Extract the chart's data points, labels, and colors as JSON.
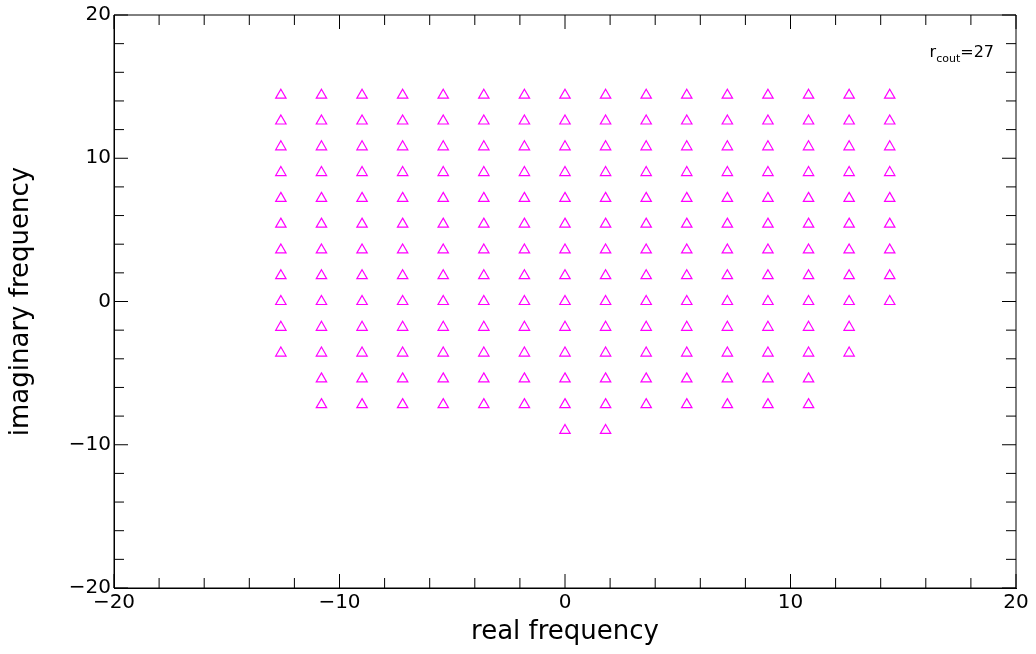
{
  "chart_data": {
    "type": "scatter",
    "xlabel": "real frequency",
    "ylabel": "imaginary frequency",
    "marker": "triangle",
    "grid": false,
    "legend": false,
    "xlim": [
      -20,
      20
    ],
    "ylim": [
      -20,
      20
    ],
    "xticks": [
      -20,
      {
        "value": -18,
        "label": null
      },
      {
        "value": -16,
        "label": null
      },
      {
        "value": -14,
        "label": null
      },
      {
        "value": -12,
        "label": null
      },
      -10,
      {
        "value": -8,
        "label": null
      },
      {
        "value": -6,
        "label": null
      },
      {
        "value": -4,
        "label": null
      },
      {
        "value": -2,
        "label": null
      },
      0,
      {
        "value": 2,
        "label": null
      },
      {
        "value": 4,
        "label": null
      },
      {
        "value": 6,
        "label": null
      },
      {
        "value": 8,
        "label": null
      },
      10,
      {
        "value": 12,
        "label": null
      },
      {
        "value": 14,
        "label": null
      },
      {
        "value": 16,
        "label": null
      },
      {
        "value": 18,
        "label": null
      },
      20
    ],
    "yticks": [
      -20,
      {
        "value": -18,
        "label": null
      },
      {
        "value": -16,
        "label": null
      },
      {
        "value": -14,
        "label": null
      },
      {
        "value": -12,
        "label": null
      },
      -10,
      {
        "value": -8,
        "label": null
      },
      {
        "value": -6,
        "label": null
      },
      {
        "value": -4,
        "label": null
      },
      {
        "value": -2,
        "label": null
      },
      0,
      {
        "value": 2,
        "label": null
      },
      {
        "value": 4,
        "label": null
      },
      {
        "value": 6,
        "label": null
      },
      {
        "value": 8,
        "label": null
      },
      10,
      {
        "value": 12,
        "label": null
      },
      {
        "value": 14,
        "label": null
      },
      {
        "value": 16,
        "label": null
      },
      {
        "value": 18,
        "label": null
      },
      20
    ],
    "annotations": [
      "r$_{cout}$=27"
    ],
    "series": [
      {
        "color": "#ff00ff",
        "x": [
          -12.6,
          -10.8,
          -9,
          -7.2,
          -5.4,
          -3.6,
          -1.8,
          0,
          1.8,
          3.6,
          5.4,
          7.2,
          9,
          10.8,
          12.6,
          14.4,
          -12.6,
          -10.8,
          -9,
          -7.2,
          -5.4,
          -3.6,
          -1.8,
          0,
          1.8,
          3.6,
          5.4,
          7.2,
          9,
          10.8,
          12.6,
          14.4,
          -12.6,
          -10.8,
          -9,
          -7.2,
          -5.4,
          -3.6,
          -1.8,
          0,
          1.8,
          3.6,
          5.4,
          7.2,
          9,
          10.8,
          12.6,
          14.4,
          -12.6,
          -10.8,
          -9,
          -7.2,
          -5.4,
          -3.6,
          -1.8,
          0,
          1.8,
          3.6,
          5.4,
          7.2,
          9,
          10.8,
          12.6,
          14.4,
          -12.6,
          -10.8,
          -9,
          -7.2,
          -5.4,
          -3.6,
          -1.8,
          0,
          1.8,
          3.6,
          5.4,
          7.2,
          9,
          10.8,
          12.6,
          14.4,
          -12.6,
          -10.8,
          -9,
          -7.2,
          -5.4,
          -3.6,
          -1.8,
          0,
          1.8,
          3.6,
          5.4,
          7.2,
          9,
          10.8,
          12.6,
          14.4,
          -12.6,
          -10.8,
          -9,
          -7.2,
          -5.4,
          -3.6,
          -1.8,
          0,
          1.8,
          3.6,
          5.4,
          7.2,
          9,
          10.8,
          12.6,
          14.4,
          -12.6,
          -10.8,
          -9,
          -7.2,
          -5.4,
          -3.6,
          -1.8,
          0,
          1.8,
          3.6,
          5.4,
          7.2,
          9,
          10.8,
          12.6,
          14.4,
          -12.6,
          -10.8,
          -9,
          -7.2,
          -5.4,
          -3.6,
          -1.8,
          0,
          1.8,
          3.6,
          5.4,
          7.2,
          9,
          10.8,
          12.6,
          14.4,
          -12.6,
          -10.8,
          -9,
          -7.2,
          -5.4,
          -3.6,
          -1.8,
          0,
          1.8,
          3.6,
          5.4,
          7.2,
          9,
          10.8,
          12.6,
          -12.6,
          -10.8,
          -9,
          -7.2,
          -5.4,
          -3.6,
          -1.8,
          0,
          1.8,
          3.6,
          5.4,
          7.2,
          9,
          10.8,
          12.6,
          -10.8,
          -9,
          -7.2,
          -5.4,
          -3.6,
          -1.8,
          0,
          1.8,
          3.6,
          5.4,
          7.2,
          9,
          10.8,
          -10.8,
          -9,
          -7.2,
          -5.4,
          -3.6,
          -1.8,
          0,
          1.8,
          3.6,
          5.4,
          7.2,
          9,
          10.8,
          0,
          1.8
        ],
        "values": [
          14.4,
          14.4,
          14.4,
          14.4,
          14.4,
          14.4,
          14.4,
          14.4,
          14.4,
          14.4,
          14.4,
          14.4,
          14.4,
          14.4,
          14.4,
          14.4,
          12.6,
          12.6,
          12.6,
          12.6,
          12.6,
          12.6,
          12.6,
          12.6,
          12.6,
          12.6,
          12.6,
          12.6,
          12.6,
          12.6,
          12.6,
          12.6,
          10.8,
          10.8,
          10.8,
          10.8,
          10.8,
          10.8,
          10.8,
          10.8,
          10.8,
          10.8,
          10.8,
          10.8,
          10.8,
          10.8,
          10.8,
          10.8,
          9,
          9,
          9,
          9,
          9,
          9,
          9,
          9,
          9,
          9,
          9,
          9,
          9,
          9,
          9,
          9,
          7.2,
          7.2,
          7.2,
          7.2,
          7.2,
          7.2,
          7.2,
          7.2,
          7.2,
          7.2,
          7.2,
          7.2,
          7.2,
          7.2,
          7.2,
          7.2,
          5.4,
          5.4,
          5.4,
          5.4,
          5.4,
          5.4,
          5.4,
          5.4,
          5.4,
          5.4,
          5.4,
          5.4,
          5.4,
          5.4,
          5.4,
          5.4,
          3.6,
          3.6,
          3.6,
          3.6,
          3.6,
          3.6,
          3.6,
          3.6,
          3.6,
          3.6,
          3.6,
          3.6,
          3.6,
          3.6,
          3.6,
          3.6,
          1.8,
          1.8,
          1.8,
          1.8,
          1.8,
          1.8,
          1.8,
          1.8,
          1.8,
          1.8,
          1.8,
          1.8,
          1.8,
          1.8,
          1.8,
          1.8,
          0,
          0,
          0,
          0,
          0,
          0,
          0,
          0,
          0,
          0,
          0,
          0,
          0,
          0,
          0,
          0,
          -1.8,
          -1.8,
          -1.8,
          -1.8,
          -1.8,
          -1.8,
          -1.8,
          -1.8,
          -1.8,
          -1.8,
          -1.8,
          -1.8,
          -1.8,
          -1.8,
          -1.8,
          -3.6,
          -3.6,
          -3.6,
          -3.6,
          -3.6,
          -3.6,
          -3.6,
          -3.6,
          -3.6,
          -3.6,
          -3.6,
          -3.6,
          -3.6,
          -3.6,
          -3.6,
          -5.4,
          -5.4,
          -5.4,
          -5.4,
          -5.4,
          -5.4,
          -5.4,
          -5.4,
          -5.4,
          -5.4,
          -5.4,
          -5.4,
          -5.4,
          -7.2,
          -7.2,
          -7.2,
          -7.2,
          -7.2,
          -7.2,
          -7.2,
          -7.2,
          -7.2,
          -7.2,
          -7.2,
          -7.2,
          -7.2,
          -9,
          -9
        ]
      }
    ]
  }
}
